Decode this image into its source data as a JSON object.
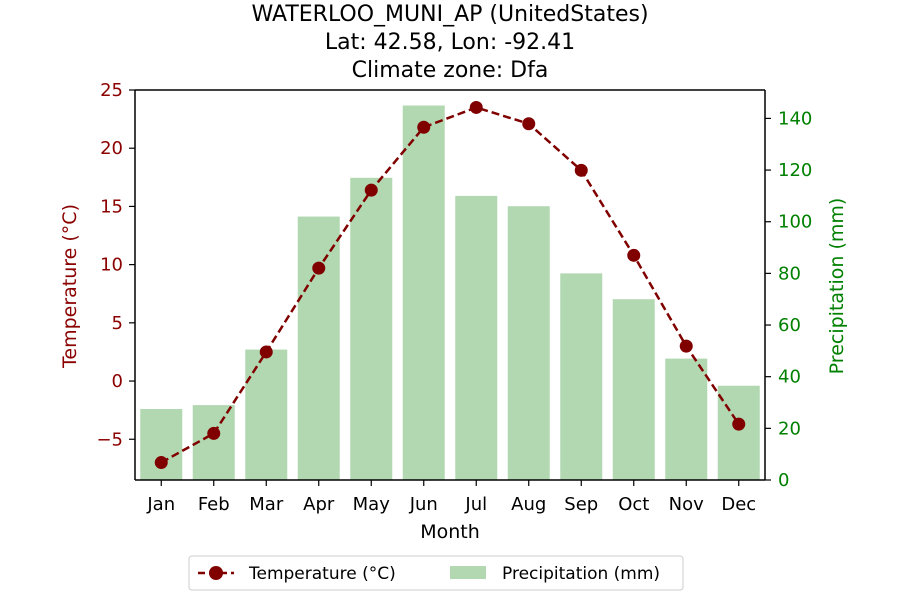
{
  "chart_data": {
    "type": "bar+line",
    "title_lines": [
      "WATERLOO_MUNI_AP (UnitedStates)",
      "Lat: 42.58, Lon: -92.41",
      "Climate zone: Dfa"
    ],
    "xlabel": "Month",
    "ylabel_left": "Temperature (°C)",
    "ylabel_right": "Precipitation (mm)",
    "categories": [
      "Jan",
      "Feb",
      "Mar",
      "Apr",
      "May",
      "Jun",
      "Jul",
      "Aug",
      "Sep",
      "Oct",
      "Nov",
      "Dec"
    ],
    "temperature": {
      "name": "Temperature (°C)",
      "values": [
        -7.0,
        -4.5,
        2.5,
        9.7,
        16.4,
        21.8,
        23.5,
        22.1,
        18.1,
        10.8,
        3.0,
        -3.7
      ],
      "ylim": [
        -8.5,
        25
      ],
      "ticks": [
        -5,
        0,
        5,
        10,
        15,
        20,
        25
      ],
      "tick_labels": [
        "−5",
        "0",
        "5",
        "10",
        "15",
        "20",
        "25"
      ],
      "color": "#800000",
      "style": "dashed line with circle markers"
    },
    "precipitation": {
      "name": "Precipitation (mm)",
      "values": [
        27.5,
        29.0,
        50.5,
        102.0,
        117.0,
        145.0,
        110.0,
        106.0,
        80.0,
        70.0,
        47.0,
        36.5
      ],
      "ylim": [
        0,
        151
      ],
      "ticks": [
        0,
        20,
        40,
        60,
        80,
        100,
        120,
        140
      ],
      "tick_labels": [
        "0",
        "20",
        "40",
        "60",
        "80",
        "100",
        "120",
        "140"
      ],
      "color": "#b2d8b2"
    },
    "left_axis_color": "#8b0000",
    "right_axis_color": "#008000",
    "legend_position": "bottom-center",
    "grid": false
  }
}
